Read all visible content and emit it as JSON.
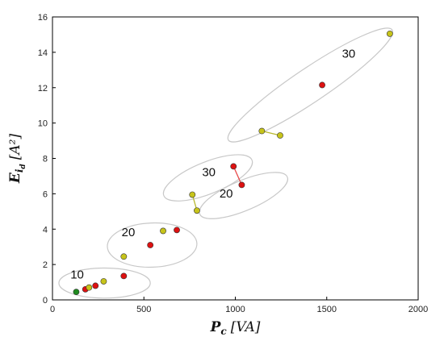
{
  "chart_data": {
    "type": "scatter",
    "title": "",
    "xlabel": {
      "symbol": "P",
      "subscript": "c",
      "unit": "[VA]"
    },
    "ylabel": {
      "symbol": "E",
      "subscript": "i",
      "subsubscript": "d",
      "unit": "[A²]"
    },
    "xlim": [
      0,
      2000
    ],
    "ylim": [
      0,
      16
    ],
    "xticks": [
      0,
      500,
      1000,
      1500,
      2000
    ],
    "yticks": [
      0,
      2,
      4,
      6,
      8,
      10,
      12,
      14,
      16
    ],
    "grid": false,
    "legend": "none",
    "colors": {
      "red": "#dd1111",
      "yellow": "#c7c41a",
      "green": "#1f8a1f",
      "red_line": "#e84a4a",
      "yellow_line": "#b8b830",
      "ellipse": "#c8c8c8"
    },
    "points": [
      {
        "x": 130,
        "y": 0.45,
        "color": "green"
      },
      {
        "x": 180,
        "y": 0.6,
        "color": "red"
      },
      {
        "x": 200,
        "y": 0.7,
        "color": "yellow"
      },
      {
        "x": 235,
        "y": 0.8,
        "color": "red"
      },
      {
        "x": 280,
        "y": 1.05,
        "color": "yellow"
      },
      {
        "x": 390,
        "y": 1.35,
        "color": "red"
      },
      {
        "x": 390,
        "y": 2.45,
        "color": "yellow"
      },
      {
        "x": 535,
        "y": 3.1,
        "color": "red"
      },
      {
        "x": 605,
        "y": 3.9,
        "color": "yellow"
      },
      {
        "x": 680,
        "y": 3.95,
        "color": "red"
      },
      {
        "x": 765,
        "y": 5.95,
        "color": "yellow"
      },
      {
        "x": 790,
        "y": 5.05,
        "color": "yellow"
      },
      {
        "x": 990,
        "y": 7.55,
        "color": "red"
      },
      {
        "x": 1035,
        "y": 6.5,
        "color": "red"
      },
      {
        "x": 1145,
        "y": 9.55,
        "color": "yellow"
      },
      {
        "x": 1245,
        "y": 9.3,
        "color": "yellow"
      },
      {
        "x": 1475,
        "y": 12.15,
        "color": "red"
      },
      {
        "x": 1845,
        "y": 15.05,
        "color": "yellow"
      }
    ],
    "connectors": [
      {
        "from": [
          765,
          5.95
        ],
        "to": [
          790,
          5.05
        ],
        "color": "yellow_line"
      },
      {
        "from": [
          990,
          7.55
        ],
        "to": [
          1035,
          6.5
        ],
        "color": "red_line"
      },
      {
        "from": [
          1145,
          9.55
        ],
        "to": [
          1245,
          9.3
        ],
        "color": "yellow_line"
      }
    ],
    "groups": [
      {
        "cx": 285,
        "cy": 0.95,
        "rx": 250,
        "ry": 0.85,
        "angle": 0
      },
      {
        "cx": 545,
        "cy": 3.1,
        "rx": 245,
        "ry": 1.25,
        "angle": -2
      },
      {
        "cx": 850,
        "cy": 6.9,
        "rx": 260,
        "ry": 0.9,
        "angle": -22
      },
      {
        "cx": 1045,
        "cy": 5.9,
        "rx": 260,
        "ry": 0.85,
        "angle": -23
      },
      {
        "cx": 1410,
        "cy": 12.15,
        "rx": 540,
        "ry": 0.95,
        "angle": -34
      }
    ],
    "annotations": [
      {
        "text": "10",
        "x": 135,
        "y": 1.2
      },
      {
        "text": "20",
        "x": 415,
        "y": 3.6
      },
      {
        "text": "30",
        "x": 855,
        "y": 7.0
      },
      {
        "text": "20",
        "x": 950,
        "y": 5.8
      },
      {
        "text": "30",
        "x": 1620,
        "y": 13.7
      }
    ]
  }
}
